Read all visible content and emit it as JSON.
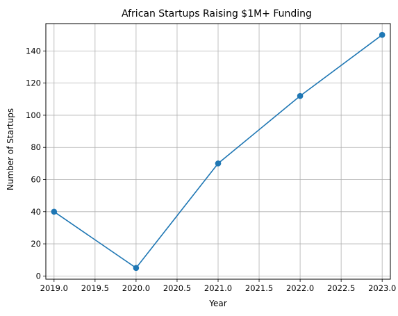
{
  "chart_data": {
    "type": "line",
    "title": "African Startups Raising $1M+ Funding",
    "xlabel": "Year",
    "ylabel": "Number of Startups",
    "x": [
      2019,
      2020,
      2021,
      2022,
      2023
    ],
    "series": [
      {
        "values": [
          40,
          5,
          70,
          112,
          150
        ],
        "color": "#1f77b4",
        "marker": "circle"
      }
    ],
    "xlim": [
      2018.9,
      2023.1
    ],
    "ylim": [
      -2,
      157
    ],
    "x_ticks": [
      2019.0,
      2019.5,
      2020.0,
      2020.5,
      2021.0,
      2021.5,
      2022.0,
      2022.5,
      2023.0
    ],
    "x_tick_labels": [
      "2019.0",
      "2019.5",
      "2020.0",
      "2020.5",
      "2021.0",
      "2021.5",
      "2022.0",
      "2022.5",
      "2023.0"
    ],
    "y_ticks": [
      0,
      20,
      40,
      60,
      80,
      100,
      120,
      140
    ],
    "y_tick_labels": [
      "0",
      "20",
      "40",
      "60",
      "80",
      "100",
      "120",
      "140"
    ],
    "grid": true,
    "grid_color": "#b0b0b0",
    "axis_color": "#000000"
  }
}
